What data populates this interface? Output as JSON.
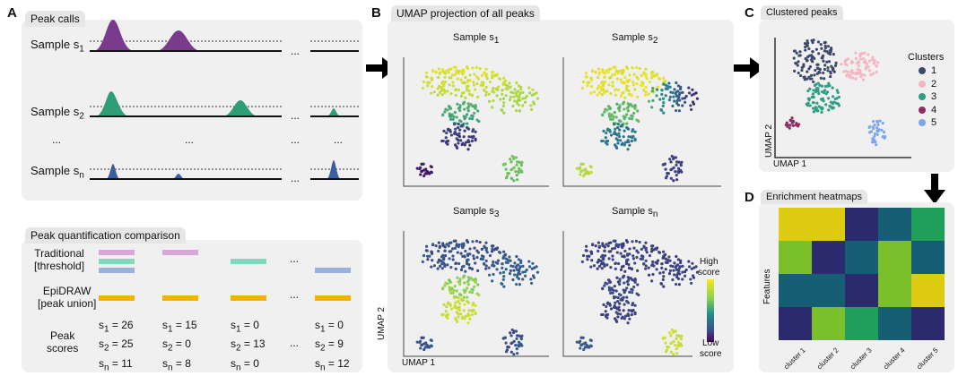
{
  "panels": {
    "a": {
      "letter": "A",
      "title": "Peak calls"
    },
    "b": {
      "letter": "B",
      "title": "UMAP projection of all peaks"
    },
    "c": {
      "letter": "C",
      "title": "Clustered peaks"
    },
    "d": {
      "letter": "D",
      "title": "Enrichment heatmaps"
    },
    "q": {
      "title": "Peak quantification comparison"
    }
  },
  "samples": [
    {
      "label": "Sample s",
      "sub": "1"
    },
    {
      "label": "Sample s",
      "sub": "2"
    },
    {
      "label": "Sample s",
      "sub": "n"
    }
  ],
  "ellipsis": "...",
  "quant": {
    "traditional": [
      "Traditional",
      "[threshold]"
    ],
    "epidraw": [
      "EpiDRAW",
      "[peak union]"
    ],
    "peak_scores": [
      "Peak",
      "scores"
    ],
    "columns": [
      [
        "s1 = 26",
        "s2 = 25",
        "sn = 11"
      ],
      [
        "s1 = 15",
        "s2 = 0",
        "sn = 8"
      ],
      [
        "s1 = 0",
        "s2 = 13",
        "sn = 0"
      ],
      [
        "s1 = 0",
        "s2 = 9",
        "sn = 12"
      ]
    ],
    "scores": [
      [
        {
          "s": "1",
          "v": "26"
        },
        {
          "s": "2",
          "v": "25"
        },
        {
          "s": "n",
          "v": "11"
        }
      ],
      [
        {
          "s": "1",
          "v": "15"
        },
        {
          "s": "2",
          "v": "0"
        },
        {
          "s": "n",
          "v": "8"
        }
      ],
      [
        {
          "s": "1",
          "v": "0"
        },
        {
          "s": "2",
          "v": "13"
        },
        {
          "s": "n",
          "v": "0"
        }
      ],
      [
        {
          "s": "1",
          "v": "0"
        },
        {
          "s": "2",
          "v": "9"
        },
        {
          "s": "n",
          "v": "12"
        }
      ]
    ]
  },
  "umap": {
    "plots": [
      {
        "title": "Sample s",
        "sub": "1"
      },
      {
        "title": "Sample s",
        "sub": "2"
      },
      {
        "title": "Sample s",
        "sub": "3"
      },
      {
        "title": "Sample s",
        "sub": "n"
      }
    ],
    "axis_x": "UMAP 1",
    "axis_y": "UMAP 2",
    "colorbar_high": [
      "High",
      "score"
    ],
    "colorbar_low": [
      "Low",
      "score"
    ]
  },
  "clusters": {
    "legend_title": "Clusters",
    "items": [
      {
        "label": "1",
        "color": "#3d4a6b"
      },
      {
        "label": "2",
        "color": "#f4b6c2"
      },
      {
        "label": "3",
        "color": "#2f9e84"
      },
      {
        "label": "4",
        "color": "#8e2f63"
      },
      {
        "label": "5",
        "color": "#7ea6ec"
      }
    ],
    "axis_x": "UMAP 1",
    "axis_y": "UMAP 2"
  },
  "heatmap": {
    "ylabel": "Features",
    "columns": [
      "cluster 1",
      "cluster 2",
      "cluster 3",
      "cluster 4",
      "cluster 5"
    ],
    "palette": {
      "y": "#dccb10",
      "g": "#7bbf2a",
      "t": "#155e73",
      "n": "#2b2a6e",
      "e": "#1f9f5a"
    },
    "cells": [
      [
        "y",
        "y",
        "n",
        "t",
        "e"
      ],
      [
        "g",
        "n",
        "t",
        "g",
        "t"
      ],
      [
        "t",
        "t",
        "n",
        "g",
        "y"
      ],
      [
        "n",
        "g",
        "e",
        "t",
        "n"
      ]
    ]
  },
  "colors": {
    "sample1": "#7b3b8c",
    "sample2": "#2f9e76",
    "samplen": "#3b5f9e",
    "trad_colors": [
      "#d9a6dc",
      "#7fd9be",
      "#9ab3dc"
    ],
    "epidraw": "#f0b400"
  }
}
